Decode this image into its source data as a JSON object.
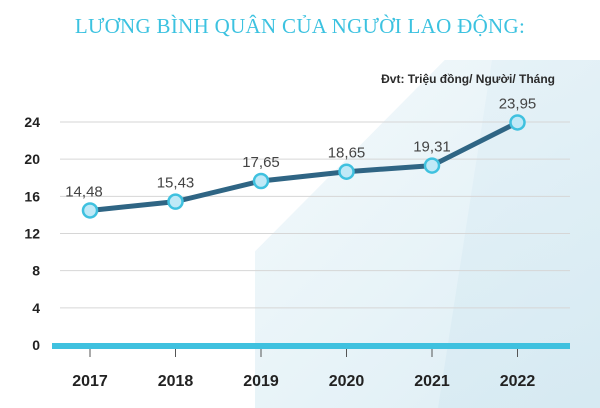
{
  "title": "LƯƠNG BÌNH QUÂN CỦA NGƯỜI LAO ĐỘNG:",
  "unit_label": "Đvt: Triệu đồng/ Người/ Tháng",
  "colors": {
    "title": "#3cc2e0",
    "line": "#2f6584",
    "axis": "#3fc1df",
    "marker_fill": "#bfe9f7",
    "marker_stroke": "#3fc1df"
  },
  "chart_data": {
    "type": "line",
    "categories": [
      "2017",
      "2018",
      "2019",
      "2020",
      "2021",
      "2022"
    ],
    "series": [
      {
        "values": [
          14.48,
          15.43,
          17.65,
          18.65,
          19.31,
          23.95
        ]
      }
    ],
    "value_labels": [
      "14,48",
      "15,43",
      "17,65",
      "18,65",
      "19,31",
      "23,95"
    ],
    "y_ticks": [
      "0",
      "4",
      "8",
      "12",
      "16",
      "20",
      "24"
    ],
    "ylim": [
      0,
      24
    ],
    "grid": true,
    "title": "LƯƠNG BÌNH QUÂN CỦA NGƯỜI LAO ĐỘNG:",
    "xlabel": "",
    "ylabel": ""
  }
}
